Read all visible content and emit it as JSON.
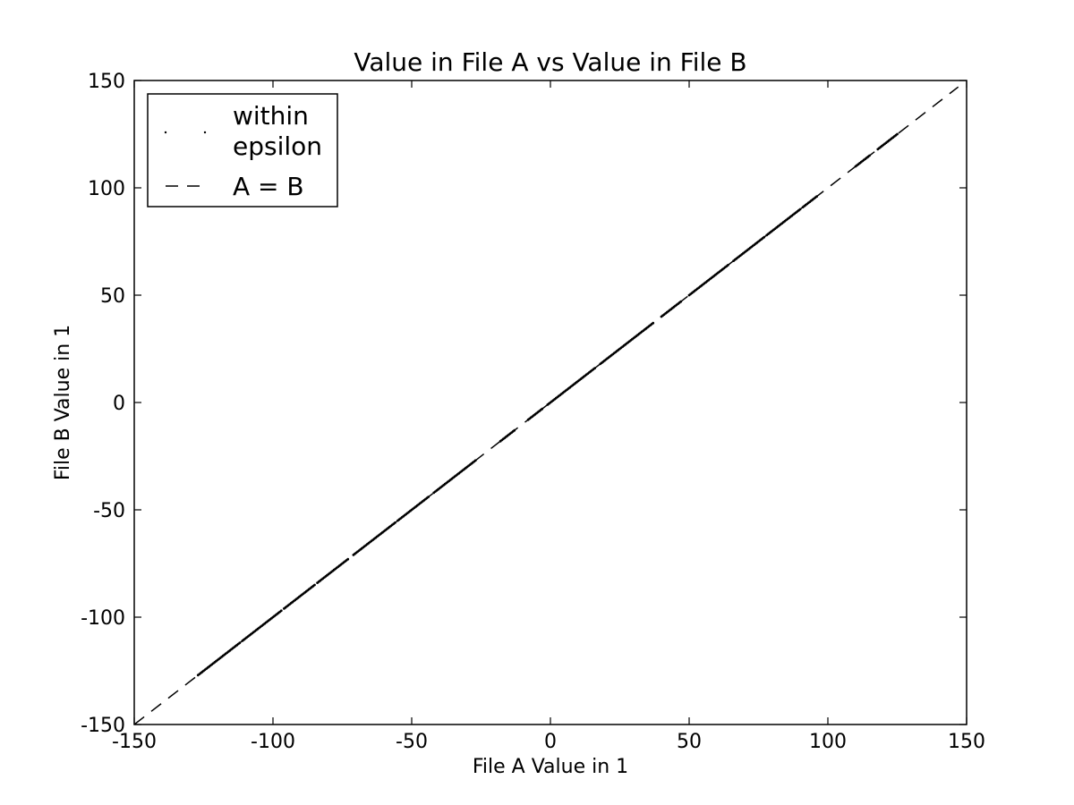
{
  "chart_data": {
    "type": "scatter",
    "title": "Value in File A vs Value in File B",
    "xlabel": "File A Value in 1",
    "ylabel": "File B Value in 1",
    "xlim": [
      -150,
      150
    ],
    "ylim": [
      -150,
      150
    ],
    "xticks": [
      -150,
      -100,
      -50,
      0,
      50,
      100,
      150
    ],
    "yticks": [
      -150,
      -100,
      -50,
      0,
      50,
      100,
      150
    ],
    "grid": false,
    "legend": {
      "placement": "top-left",
      "entries": [
        {
          "label_line1": "within",
          "label_line2": "epsilon",
          "marker": "point"
        },
        {
          "label": "A = B",
          "marker": "dashed-line"
        }
      ]
    },
    "series": [
      {
        "name": "within epsilon",
        "style": "point",
        "color": "#000000",
        "segments": [
          [
            -127,
            -112
          ],
          [
            -111,
            -97
          ],
          [
            -96,
            -85
          ],
          [
            -84,
            -73
          ],
          [
            -71,
            -56
          ],
          [
            -55,
            -44
          ],
          [
            -42,
            -27
          ],
          [
            -18,
            -13
          ],
          [
            -8,
            -3
          ],
          [
            -1,
            16
          ],
          [
            18,
            37
          ],
          [
            40,
            47
          ],
          [
            50,
            64
          ],
          [
            66,
            77
          ],
          [
            78,
            90
          ],
          [
            91,
            96
          ],
          [
            110,
            115
          ],
          [
            118,
            125
          ]
        ]
      },
      {
        "name": "A = B",
        "style": "dashed",
        "color": "#000000",
        "x": [
          -150,
          147
        ],
        "y": [
          -150,
          147
        ]
      }
    ]
  }
}
